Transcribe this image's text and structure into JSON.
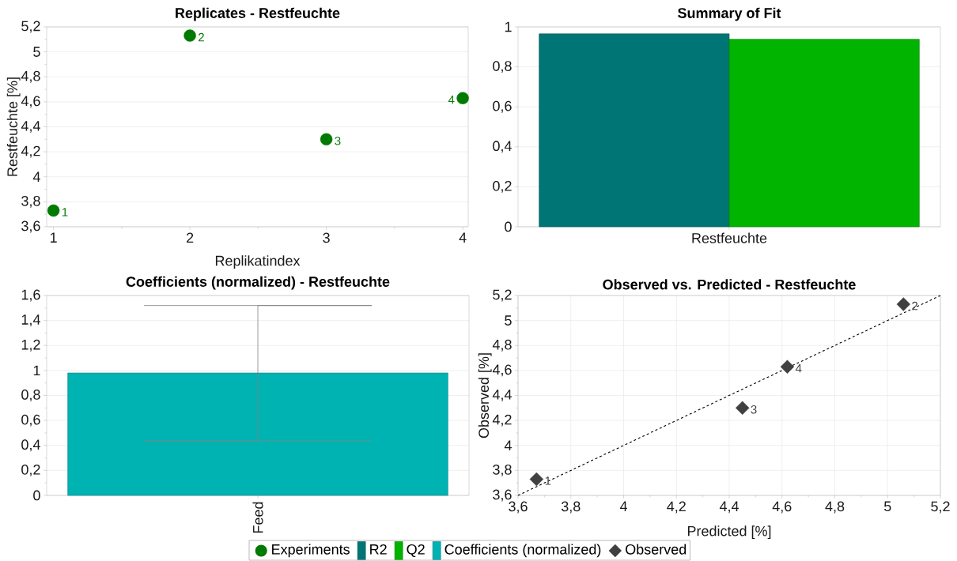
{
  "chart_data": [
    {
      "type": "scatter",
      "title": "Replicates - Restfeuchte",
      "xlabel": "Replikatindex",
      "ylabel": "Restfeuchte [%]",
      "x": [
        1,
        2,
        3,
        4
      ],
      "series": [
        {
          "name": "Experiments",
          "color": "#007a00",
          "values": [
            3.73,
            5.13,
            4.3,
            4.63
          ]
        }
      ],
      "marker": "circle",
      "xlim": [
        0.95,
        4.04
      ],
      "ylim": [
        3.6,
        5.2
      ],
      "xticks": [
        1,
        2,
        3,
        4
      ],
      "yticks": [
        {
          "value": 3.6,
          "label": "3,6"
        },
        {
          "value": 3.8,
          "label": "3,8"
        },
        4,
        {
          "value": 4.2,
          "label": "4,2"
        },
        {
          "value": 4.4,
          "label": "4,4"
        },
        {
          "value": 4.6,
          "label": "4,6"
        },
        {
          "value": 4.8,
          "label": "4,8"
        },
        5,
        {
          "value": 5.2,
          "label": "5,2"
        }
      ],
      "grid": "y",
      "legend": "bottom",
      "annotations": [
        {
          "text": "1",
          "x": 1,
          "y": 3.73
        },
        {
          "text": "2",
          "x": 2,
          "y": 5.13
        },
        {
          "text": "3",
          "x": 3,
          "y": 4.3
        },
        {
          "text": "4",
          "x": 4,
          "y": 4.63
        }
      ]
    },
    {
      "type": "bar",
      "title": "Summary of Fit",
      "categories": [
        "Restfeuchte"
      ],
      "series": [
        {
          "name": "R2",
          "color": "#007575",
          "values": [
            0.965
          ]
        },
        {
          "name": "Q2",
          "color": "#00b400",
          "values": [
            0.938
          ]
        }
      ],
      "ylim": [
        0,
        1
      ],
      "yticks": [
        0,
        {
          "value": 0.2,
          "label": "0,2"
        },
        {
          "value": 0.4,
          "label": "0,4"
        },
        {
          "value": 0.6,
          "label": "0,6"
        },
        {
          "value": 0.8,
          "label": "0,8"
        },
        1
      ],
      "grid": "y",
      "legend": "bottom"
    },
    {
      "type": "bar",
      "title": "Coefficients (normalized) - Restfeuchte",
      "categories": [
        "Feed"
      ],
      "series": [
        {
          "name": "Coefficients (normalized)",
          "color": "#00b3b3",
          "values": [
            0.98
          ],
          "errors": [
            0.54
          ]
        }
      ],
      "ylim": [
        0,
        1.6
      ],
      "yticks": [
        0,
        {
          "value": 0.2,
          "label": "0,2"
        },
        {
          "value": 0.4,
          "label": "0,4"
        },
        {
          "value": 0.6,
          "label": "0,6"
        },
        {
          "value": 0.8,
          "label": "0,8"
        },
        1,
        {
          "value": 1.2,
          "label": "1,2"
        },
        {
          "value": 1.4,
          "label": "1,4"
        },
        {
          "value": 1.6,
          "label": "1,6"
        }
      ],
      "grid": "y",
      "legend": "bottom"
    },
    {
      "type": "scatter",
      "title": "Observed vs. Predicted - Restfeuchte",
      "xlabel": "Predicted [%]",
      "ylabel": "Observed [%]",
      "series": [
        {
          "name": "Observed",
          "color": "#404040",
          "x": [
            3.67,
            5.06,
            4.45,
            4.62
          ],
          "values": [
            3.73,
            5.13,
            4.3,
            4.63
          ]
        },
        {
          "type": "line",
          "color": "#000000",
          "x": [
            3.6,
            5.2
          ],
          "values": [
            3.6,
            5.2
          ],
          "line_style": "dashed",
          "marker": "none"
        }
      ],
      "marker": "diamond",
      "xlim": [
        3.6,
        5.2
      ],
      "ylim": [
        3.6,
        5.2
      ],
      "xticks": [
        {
          "value": 3.6,
          "label": "3,6"
        },
        {
          "value": 3.8,
          "label": "3,8"
        },
        4,
        {
          "value": 4.2,
          "label": "4,2"
        },
        {
          "value": 4.4,
          "label": "4,4"
        },
        {
          "value": 4.6,
          "label": "4,6"
        },
        {
          "value": 4.8,
          "label": "4,8"
        },
        5,
        {
          "value": 5.2,
          "label": "5,2"
        }
      ],
      "yticks": [
        {
          "value": 3.6,
          "label": "3,6"
        },
        {
          "value": 3.8,
          "label": "3,8"
        },
        4,
        {
          "value": 4.2,
          "label": "4,2"
        },
        {
          "value": 4.4,
          "label": "4,4"
        },
        {
          "value": 4.6,
          "label": "4,6"
        },
        {
          "value": 4.8,
          "label": "4,8"
        },
        5,
        {
          "value": 5.2,
          "label": "5,2"
        }
      ],
      "grid": true,
      "legend": "bottom",
      "annotations": [
        {
          "text": "1",
          "x": 3.67,
          "y": 3.73
        },
        {
          "text": "2",
          "x": 5.06,
          "y": 5.13
        },
        {
          "text": "3",
          "x": 4.45,
          "y": 4.3
        },
        {
          "text": "4",
          "x": 4.62,
          "y": 4.63
        }
      ]
    }
  ]
}
